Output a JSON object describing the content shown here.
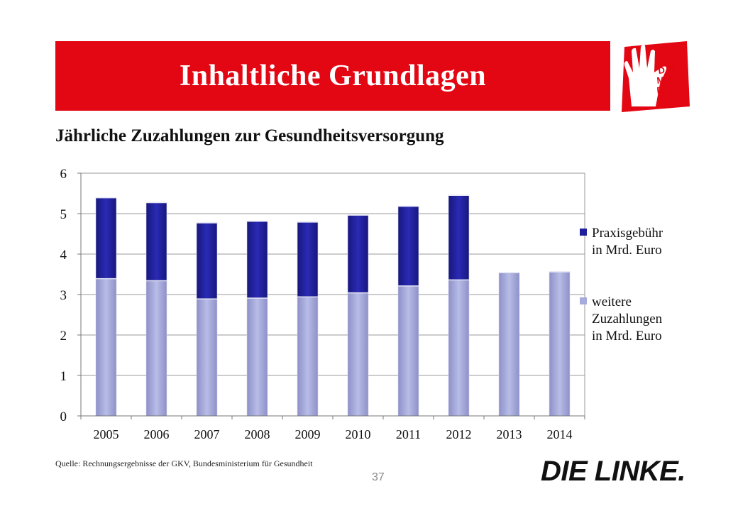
{
  "header": {
    "title": "Inhaltliche Grundlagen",
    "logo_text": [
      "DAS",
      "MUSS",
      "DRIN",
      "SEIN."
    ],
    "accent_color": "#e30613"
  },
  "subtitle": "Jährliche Zuzahlungen zur Gesundheitsversorgung",
  "chart_data": {
    "type": "bar",
    "stacked": true,
    "categories": [
      "2005",
      "2006",
      "2007",
      "2008",
      "2009",
      "2010",
      "2011",
      "2012",
      "2013",
      "2014"
    ],
    "series": [
      {
        "name": "weitere Zuzahlungen in Mrd. Euro",
        "legend_lines": [
          "weitere",
          "Zuzahlungen",
          "in Mrd. Euro"
        ],
        "color": "#a7abdb",
        "values": [
          3.4,
          3.35,
          2.9,
          2.92,
          2.95,
          3.05,
          3.22,
          3.37,
          3.55,
          3.57
        ]
      },
      {
        "name": "Praxisgebühr in Mrd. Euro",
        "legend_lines": [
          "Praxisgebühr",
          "in Mrd. Euro"
        ],
        "color": "#1f1f9e",
        "values": [
          2.0,
          1.93,
          1.88,
          1.9,
          1.85,
          1.92,
          1.97,
          2.09,
          0,
          0
        ]
      }
    ],
    "ylim": [
      0,
      6
    ],
    "yticks": [
      "0",
      "1",
      "2",
      "3",
      "4",
      "5",
      "6"
    ],
    "grid": true,
    "legend_position": "right"
  },
  "footer": {
    "source": "Quelle: Rechnungsergebnisse der GKV, Bundesministerium für Gesundheit",
    "page_number": "37",
    "brand": "DIE LINKE."
  }
}
